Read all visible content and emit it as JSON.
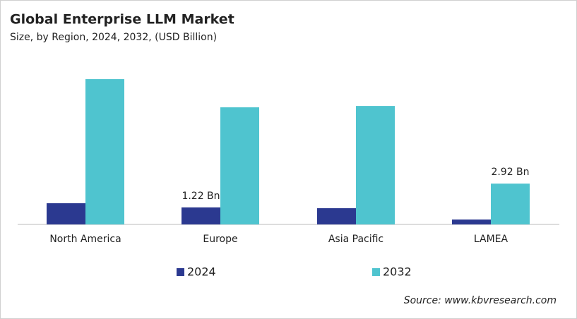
{
  "chart_data": {
    "type": "bar",
    "title": "Global Enterprise LLM Market",
    "subtitle": "Size, by Region, 2024, 2032, (USD Billion)",
    "categories": [
      "North America",
      "Europe",
      "Asia Pacific",
      "LAMEA"
    ],
    "series": [
      {
        "name": "2024",
        "color": "#2b3990",
        "values": [
          1.52,
          1.22,
          1.16,
          0.35
        ],
        "value_labels": [
          null,
          "1.22 Bn",
          null,
          null
        ]
      },
      {
        "name": "2032",
        "color": "#4fc4cf",
        "values": [
          10.4,
          8.38,
          8.48,
          2.92
        ],
        "value_labels": [
          null,
          null,
          null,
          "2.92 Bn"
        ]
      }
    ],
    "source": "Source: www.kbvresearch.com"
  }
}
